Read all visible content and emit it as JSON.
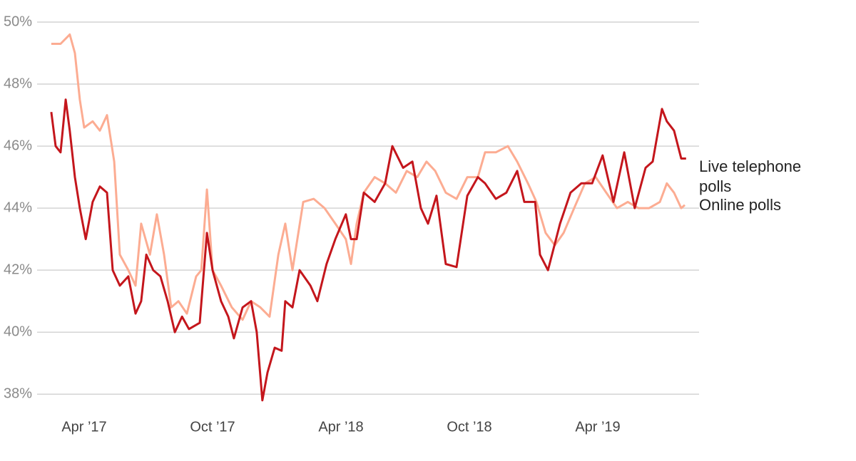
{
  "chart_data": {
    "type": "line",
    "xlim": [
      2017.1,
      2019.65
    ],
    "xticks": [
      {
        "value": 2017.25,
        "label": "Apr ’17"
      },
      {
        "value": 2017.75,
        "label": "Oct ’17"
      },
      {
        "value": 2018.25,
        "label": "Apr ’18"
      },
      {
        "value": 2018.75,
        "label": "Oct ’18"
      },
      {
        "value": 2019.25,
        "label": "Apr ’19"
      }
    ],
    "ylim": [
      37.5,
      50
    ],
    "yticks": [
      {
        "value": 38,
        "label": "38%"
      },
      {
        "value": 40,
        "label": "40%"
      },
      {
        "value": 42,
        "label": "42%"
      },
      {
        "value": 44,
        "label": "44%"
      },
      {
        "value": 46,
        "label": "46%"
      },
      {
        "value": 48,
        "label": "48%"
      },
      {
        "value": 50,
        "label": "50%"
      }
    ],
    "grid": true,
    "series": [
      {
        "name": "Online polls",
        "color": "#fcac92",
        "x": [
          2017.122,
          2017.158,
          2017.194,
          2017.214,
          2017.233,
          2017.25,
          2017.283,
          2017.311,
          2017.339,
          2017.367,
          2017.389,
          2017.422,
          2017.45,
          2017.472,
          2017.506,
          2017.533,
          2017.561,
          2017.589,
          2017.617,
          2017.65,
          2017.686,
          2017.706,
          2017.728,
          2017.75,
          2017.783,
          2017.825,
          2017.867,
          2017.9,
          2017.936,
          2017.972,
          2018.006,
          2018.033,
          2018.061,
          2018.103,
          2018.144,
          2018.186,
          2018.228,
          2018.269,
          2018.289,
          2018.311,
          2018.339,
          2018.381,
          2018.422,
          2018.464,
          2018.506,
          2018.547,
          2018.583,
          2018.617,
          2018.658,
          2018.7,
          2018.742,
          2018.783,
          2018.811,
          2018.853,
          2018.9,
          2018.936,
          2018.978,
          2019.011,
          2019.047,
          2019.083,
          2019.117,
          2019.158,
          2019.2,
          2019.242,
          2019.283,
          2019.325,
          2019.367,
          2019.408,
          2019.45,
          2019.492,
          2019.519,
          2019.547,
          2019.575,
          2019.589
        ],
        "values": [
          49.3,
          49.3,
          49.6,
          49.0,
          47.5,
          46.6,
          46.8,
          46.5,
          47.0,
          45.5,
          42.5,
          42.0,
          41.5,
          43.5,
          42.5,
          43.8,
          42.5,
          40.8,
          41.0,
          40.6,
          41.8,
          42.0,
          44.6,
          42.0,
          41.5,
          40.8,
          40.4,
          41.0,
          40.8,
          40.5,
          42.5,
          43.5,
          42.0,
          44.2,
          44.3,
          44.0,
          43.5,
          43.0,
          42.2,
          43.5,
          44.5,
          45.0,
          44.8,
          44.5,
          45.2,
          45.0,
          45.5,
          45.2,
          44.5,
          44.3,
          45.0,
          45.0,
          45.8,
          45.8,
          46.0,
          45.5,
          44.8,
          44.2,
          43.2,
          42.8,
          43.2,
          44.0,
          44.8,
          45.0,
          44.5,
          44.0,
          44.2,
          44.0,
          44.0,
          44.2,
          44.8,
          44.5,
          44.0,
          44.1
        ]
      },
      {
        "name": "Live telephone polls",
        "color": "#c4161c",
        "x": [
          2017.122,
          2017.139,
          2017.158,
          2017.178,
          2017.194,
          2017.214,
          2017.233,
          2017.256,
          2017.283,
          2017.311,
          2017.339,
          2017.361,
          2017.389,
          2017.422,
          2017.45,
          2017.472,
          2017.492,
          2017.519,
          2017.547,
          2017.575,
          2017.603,
          2017.631,
          2017.658,
          2017.7,
          2017.728,
          2017.75,
          2017.783,
          2017.811,
          2017.833,
          2017.867,
          2017.9,
          2017.922,
          2017.944,
          2017.964,
          2017.992,
          2018.019,
          2018.033,
          2018.061,
          2018.089,
          2018.131,
          2018.158,
          2018.194,
          2018.228,
          2018.269,
          2018.289,
          2018.311,
          2018.339,
          2018.381,
          2018.422,
          2018.45,
          2018.492,
          2018.528,
          2018.561,
          2018.589,
          2018.622,
          2018.658,
          2018.7,
          2018.742,
          2018.783,
          2018.811,
          2018.853,
          2018.894,
          2018.936,
          2018.964,
          2019.006,
          2019.025,
          2019.056,
          2019.103,
          2019.144,
          2019.186,
          2019.228,
          2019.269,
          2019.311,
          2019.353,
          2019.394,
          2019.436,
          2019.464,
          2019.5,
          2019.519,
          2019.547,
          2019.575,
          2019.594
        ],
        "values": [
          47.1,
          46.0,
          45.8,
          47.5,
          46.5,
          45.0,
          44.0,
          43.0,
          44.2,
          44.7,
          44.5,
          42.0,
          41.5,
          41.8,
          40.6,
          41.0,
          42.5,
          42.0,
          41.8,
          41.0,
          40.0,
          40.5,
          40.1,
          40.3,
          43.2,
          42.0,
          41.0,
          40.5,
          39.8,
          40.8,
          41.0,
          40.0,
          37.8,
          38.7,
          39.5,
          39.4,
          41.0,
          40.8,
          42.0,
          41.5,
          41.0,
          42.2,
          43.0,
          43.8,
          43.0,
          43.0,
          44.5,
          44.2,
          44.8,
          46.0,
          45.3,
          45.5,
          44.0,
          43.5,
          44.4,
          42.2,
          42.1,
          44.4,
          45.0,
          44.8,
          44.3,
          44.5,
          45.2,
          44.2,
          44.2,
          42.5,
          42.0,
          43.5,
          44.5,
          44.8,
          44.8,
          45.7,
          44.2,
          45.8,
          44.0,
          45.3,
          45.5,
          47.2,
          46.8,
          46.5,
          45.6,
          45.6
        ]
      }
    ]
  }
}
